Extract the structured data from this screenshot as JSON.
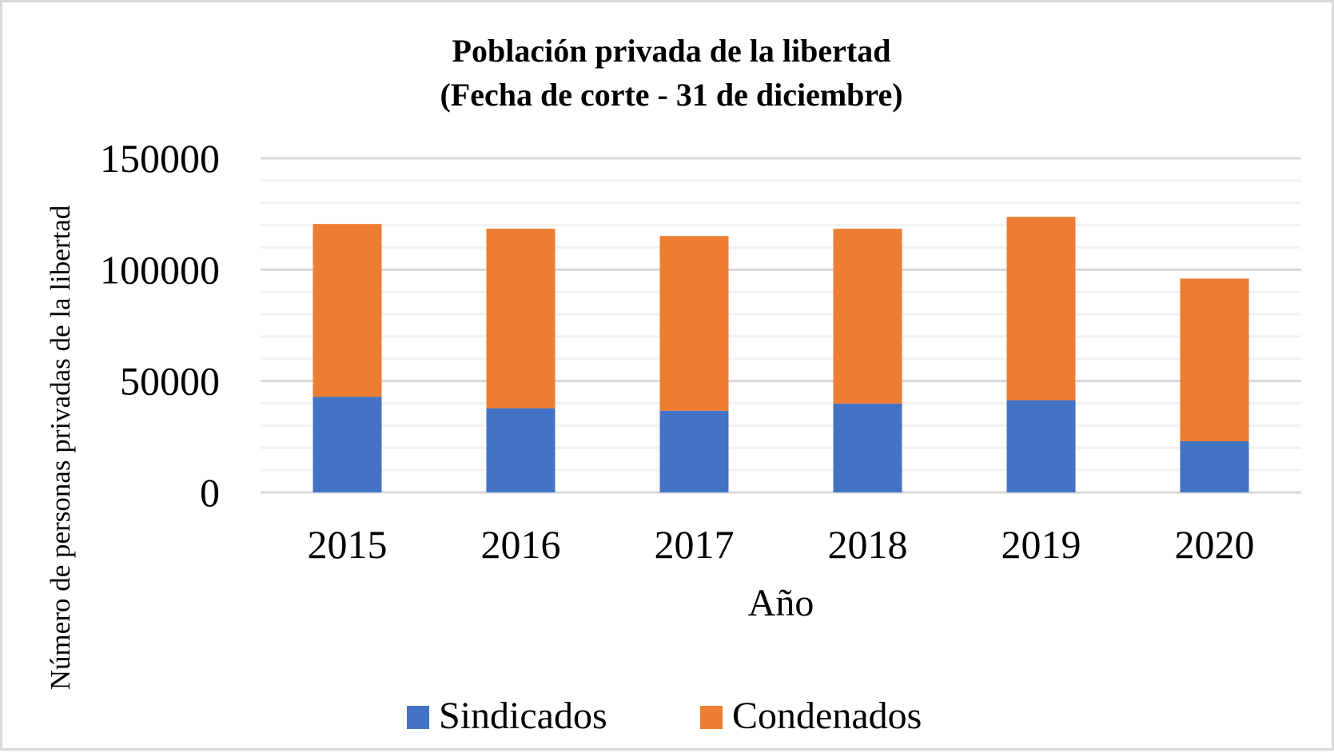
{
  "chart_data": {
    "type": "bar",
    "stacked": true,
    "title": "Población privada de la libertad",
    "subtitle": "(Fecha de corte - 31 de diciembre)",
    "xlabel": "Año",
    "ylabel": "Número de personas privadas de la libertad",
    "categories": [
      "2015",
      "2016",
      "2017",
      "2018",
      "2019",
      "2020"
    ],
    "series": [
      {
        "name": "Sindicados",
        "color": "#4472c4",
        "values": [
          42900,
          37800,
          36700,
          39900,
          41400,
          23000
        ]
      },
      {
        "name": "Condenados",
        "color": "#ed7d31",
        "values": [
          77600,
          80550,
          78400,
          78450,
          82300,
          73000
        ]
      }
    ],
    "ylim": [
      0,
      150000
    ],
    "y_ticks": [
      "0",
      "50000",
      "100000",
      "150000"
    ],
    "y_tick_values": [
      0,
      50000,
      100000,
      150000
    ],
    "minor_grid_step": 10000,
    "grid": true,
    "legend_position": "bottom",
    "colors": {
      "grid_major": "#d9d9d9",
      "grid_minor": "#f2f2f2",
      "border": "#d9d9d9",
      "text": "#000000"
    }
  }
}
